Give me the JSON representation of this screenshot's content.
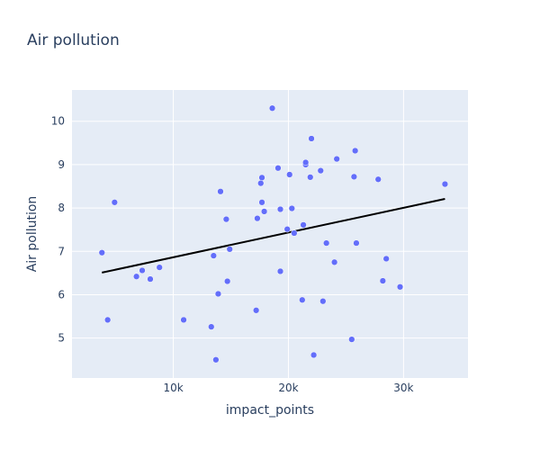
{
  "chart_data": {
    "type": "scatter",
    "title": "Air pollution",
    "xlabel": "impact_points",
    "ylabel": "Air pollution",
    "xlim": [
      1200,
      35600
    ],
    "ylim": [
      4.08,
      10.72
    ],
    "xticks": [
      10000,
      20000,
      30000
    ],
    "xtick_labels": [
      "10k",
      "20k",
      "30k"
    ],
    "yticks": [
      5,
      6,
      7,
      8,
      9,
      10
    ],
    "ytick_labels": [
      "5",
      "6",
      "7",
      "8",
      "9",
      "10"
    ],
    "grid": true,
    "colors": {
      "points": "#636efa",
      "trendline": "#000000",
      "plot_bg": "#e5ecf6",
      "grid": "#ffffff",
      "text": "#2a3f5f"
    },
    "points": [
      {
        "x": 3800,
        "y": 6.97
      },
      {
        "x": 4300,
        "y": 5.42
      },
      {
        "x": 4900,
        "y": 8.13
      },
      {
        "x": 6800,
        "y": 6.42
      },
      {
        "x": 7300,
        "y": 6.56
      },
      {
        "x": 8000,
        "y": 6.36
      },
      {
        "x": 8800,
        "y": 6.63
      },
      {
        "x": 10900,
        "y": 5.42
      },
      {
        "x": 13300,
        "y": 5.26
      },
      {
        "x": 13500,
        "y": 6.9
      },
      {
        "x": 13700,
        "y": 4.5
      },
      {
        "x": 13900,
        "y": 6.02
      },
      {
        "x": 14100,
        "y": 8.38
      },
      {
        "x": 14600,
        "y": 7.74
      },
      {
        "x": 14700,
        "y": 6.31
      },
      {
        "x": 14900,
        "y": 7.05
      },
      {
        "x": 17200,
        "y": 5.64
      },
      {
        "x": 17300,
        "y": 7.76
      },
      {
        "x": 17600,
        "y": 8.57
      },
      {
        "x": 17700,
        "y": 8.7
      },
      {
        "x": 17700,
        "y": 8.13
      },
      {
        "x": 17900,
        "y": 7.92
      },
      {
        "x": 18600,
        "y": 10.3
      },
      {
        "x": 19100,
        "y": 8.92
      },
      {
        "x": 19300,
        "y": 7.97
      },
      {
        "x": 19300,
        "y": 6.54
      },
      {
        "x": 19900,
        "y": 7.51
      },
      {
        "x": 20100,
        "y": 8.77
      },
      {
        "x": 20300,
        "y": 7.99
      },
      {
        "x": 20500,
        "y": 7.42
      },
      {
        "x": 21200,
        "y": 5.88
      },
      {
        "x": 21300,
        "y": 7.61
      },
      {
        "x": 21500,
        "y": 9.0
      },
      {
        "x": 21500,
        "y": 9.05
      },
      {
        "x": 21900,
        "y": 8.71
      },
      {
        "x": 22000,
        "y": 9.6
      },
      {
        "x": 22200,
        "y": 4.61
      },
      {
        "x": 22800,
        "y": 8.86
      },
      {
        "x": 23000,
        "y": 5.85
      },
      {
        "x": 23300,
        "y": 7.19
      },
      {
        "x": 24000,
        "y": 6.75
      },
      {
        "x": 24200,
        "y": 9.13
      },
      {
        "x": 25500,
        "y": 4.97
      },
      {
        "x": 25700,
        "y": 8.72
      },
      {
        "x": 25800,
        "y": 9.32
      },
      {
        "x": 25900,
        "y": 7.19
      },
      {
        "x": 27800,
        "y": 8.66
      },
      {
        "x": 28200,
        "y": 6.32
      },
      {
        "x": 28500,
        "y": 6.83
      },
      {
        "x": 29700,
        "y": 6.18
      },
      {
        "x": 33600,
        "y": 8.55
      }
    ],
    "trendline": [
      {
        "x": 3800,
        "y": 6.51
      },
      {
        "x": 33600,
        "y": 8.21
      }
    ]
  }
}
